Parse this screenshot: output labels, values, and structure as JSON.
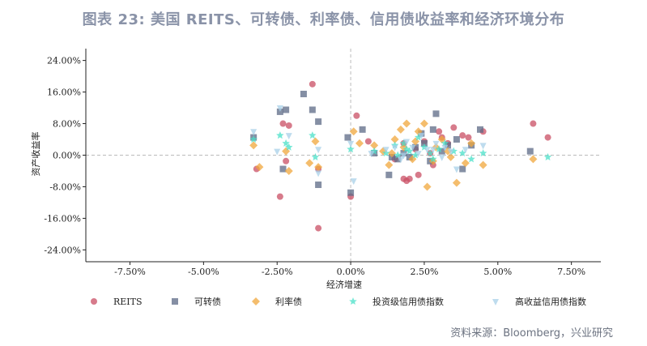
{
  "title": "图表 23: 美国 REITS、可转债、利率债、信用债收益率和经济环境分布",
  "source": "资料来源：Bloomberg，兴业研究",
  "chart_data": {
    "type": "scatter",
    "xlabel": "经济增速",
    "ylabel": "资产收益率",
    "xlim": [
      -0.09,
      0.085
    ],
    "ylim": [
      -0.27,
      0.27
    ],
    "x_ticks": [
      -0.075,
      -0.05,
      -0.025,
      0.0,
      0.025,
      0.05,
      0.075
    ],
    "x_tick_labels": [
      "-7.50%",
      "-5.00%",
      "-2.50%",
      "0.00%",
      "2.50%",
      "5.00%",
      "7.50%"
    ],
    "y_ticks": [
      -0.24,
      -0.16,
      -0.08,
      0.0,
      0.08,
      0.16,
      0.24
    ],
    "y_tick_labels": [
      "-24.00%",
      "-16.00%",
      "-8.00%",
      "0.00%",
      "8.00%",
      "16.00%",
      "24.00%"
    ],
    "reference_lines": {
      "x": 0,
      "y": 0
    },
    "legend_position": "bottom",
    "series": [
      {
        "name": "REITS",
        "marker": "circle",
        "color": "#c94f64",
        "points": [
          [
            -0.032,
            -0.035
          ],
          [
            -0.013,
            0.18
          ],
          [
            -0.021,
            0.075
          ],
          [
            -0.023,
            0.08
          ],
          [
            -0.024,
            -0.105
          ],
          [
            -0.022,
            -0.015
          ],
          [
            -0.011,
            -0.185
          ],
          [
            -0.011,
            -0.035
          ],
          [
            0.0,
            -0.105
          ],
          [
            0.002,
            0.1
          ],
          [
            0.006,
            0.035
          ],
          [
            0.018,
            -0.06
          ],
          [
            0.019,
            -0.065
          ],
          [
            0.02,
            -0.06
          ],
          [
            0.023,
            -0.05
          ],
          [
            0.025,
            0.035
          ],
          [
            0.03,
            0.06
          ],
          [
            0.033,
            0.03
          ],
          [
            0.035,
            0.07
          ],
          [
            0.038,
            0.05
          ],
          [
            0.04,
            0.045
          ],
          [
            0.045,
            0.06
          ],
          [
            0.062,
            0.08
          ],
          [
            0.067,
            0.045
          ],
          [
            0.022,
            0.015
          ],
          [
            0.027,
            0.005
          ],
          [
            0.015,
            -0.01
          ],
          [
            0.028,
            -0.025
          ],
          [
            0.031,
            0.045
          ],
          [
            0.018,
            0.03
          ]
        ]
      },
      {
        "name": "可转债",
        "marker": "square",
        "color": "#5c6a85",
        "points": [
          [
            -0.016,
            0.155
          ],
          [
            -0.022,
            0.115
          ],
          [
            -0.024,
            0.11
          ],
          [
            -0.013,
            0.115
          ],
          [
            -0.011,
            0.085
          ],
          [
            -0.023,
            -0.035
          ],
          [
            -0.033,
            0.045
          ],
          [
            -0.011,
            -0.075
          ],
          [
            0.0,
            -0.095
          ],
          [
            -0.001,
            0.045
          ],
          [
            0.004,
            0.065
          ],
          [
            0.008,
            0.005
          ],
          [
            0.013,
            -0.05
          ],
          [
            0.014,
            -0.005
          ],
          [
            0.018,
            0.005
          ],
          [
            0.022,
            0.02
          ],
          [
            0.024,
            0.055
          ],
          [
            0.028,
            0.065
          ],
          [
            0.029,
            0.105
          ],
          [
            0.033,
            0.025
          ],
          [
            0.036,
            0.04
          ],
          [
            0.038,
            -0.035
          ],
          [
            0.041,
            0.025
          ],
          [
            0.044,
            0.065
          ],
          [
            0.061,
            0.01
          ],
          [
            0.02,
            -0.005
          ],
          [
            0.025,
            0.03
          ],
          [
            0.031,
            0.01
          ],
          [
            0.016,
            -0.01
          ],
          [
            0.027,
            -0.015
          ]
        ]
      },
      {
        "name": "利率债",
        "marker": "diamond",
        "color": "#f0a73c",
        "points": [
          [
            -0.033,
            0.025
          ],
          [
            -0.031,
            -0.03
          ],
          [
            -0.022,
            0.01
          ],
          [
            -0.021,
            -0.04
          ],
          [
            -0.014,
            -0.02
          ],
          [
            -0.012,
            0.035
          ],
          [
            -0.011,
            -0.03
          ],
          [
            0.001,
            0.06
          ],
          [
            0.003,
            0.03
          ],
          [
            0.008,
            0.025
          ],
          [
            0.011,
            0.01
          ],
          [
            0.013,
            -0.025
          ],
          [
            0.015,
            0.04
          ],
          [
            0.017,
            0.065
          ],
          [
            0.019,
            0.08
          ],
          [
            0.021,
            -0.01
          ],
          [
            0.023,
            0.06
          ],
          [
            0.025,
            0.08
          ],
          [
            0.028,
            -0.015
          ],
          [
            0.031,
            0.04
          ],
          [
            0.033,
            0.01
          ],
          [
            0.036,
            -0.07
          ],
          [
            0.039,
            -0.02
          ],
          [
            0.041,
            0.03
          ],
          [
            0.045,
            -0.025
          ],
          [
            0.062,
            -0.01
          ],
          [
            0.026,
            -0.08
          ],
          [
            0.018,
            0.02
          ],
          [
            0.022,
            0.035
          ],
          [
            0.029,
            0.02
          ],
          [
            0.034,
            -0.005
          ],
          [
            0.014,
            0.005
          ]
        ]
      },
      {
        "name": "投资级信用债指数",
        "marker": "star",
        "color": "#48e0c8",
        "points": [
          [
            -0.033,
            0.04
          ],
          [
            -0.024,
            0.05
          ],
          [
            -0.022,
            0.03
          ],
          [
            -0.021,
            0.02
          ],
          [
            -0.013,
            0.05
          ],
          [
            -0.012,
            -0.005
          ],
          [
            0.0,
            0.015
          ],
          [
            0.008,
            0.01
          ],
          [
            0.012,
            0.005
          ],
          [
            0.015,
            0.025
          ],
          [
            0.018,
            0.03
          ],
          [
            0.02,
            0.01
          ],
          [
            0.023,
            0.045
          ],
          [
            0.025,
            0.02
          ],
          [
            0.027,
            0.005
          ],
          [
            0.03,
            0.015
          ],
          [
            0.032,
            0.03
          ],
          [
            0.035,
            0.01
          ],
          [
            0.038,
            0.005
          ],
          [
            0.041,
            -0.01
          ],
          [
            0.045,
            0.005
          ],
          [
            0.067,
            -0.005
          ],
          [
            0.016,
            0.0
          ],
          [
            0.022,
            0.0
          ],
          [
            0.028,
            -0.01
          ],
          [
            0.019,
            0.015
          ]
        ]
      },
      {
        "name": "高收益信用债指数",
        "marker": "triangle-down",
        "color": "#a8d0e8",
        "points": [
          [
            -0.033,
            0.06
          ],
          [
            -0.024,
            0.12
          ],
          [
            -0.021,
            0.05
          ],
          [
            -0.025,
            0.01
          ],
          [
            -0.011,
            0.015
          ],
          [
            -0.011,
            -0.045
          ],
          [
            0.0,
            0.03
          ],
          [
            0.001,
            -0.065
          ],
          [
            0.007,
            0.005
          ],
          [
            0.012,
            0.015
          ],
          [
            0.015,
            0.02
          ],
          [
            0.017,
            -0.01
          ],
          [
            0.019,
            0.035
          ],
          [
            0.021,
            0.02
          ],
          [
            0.024,
            0.05
          ],
          [
            0.026,
            0.015
          ],
          [
            0.029,
            0.03
          ],
          [
            0.031,
            -0.005
          ],
          [
            0.034,
            0.01
          ],
          [
            0.036,
            -0.035
          ],
          [
            0.039,
            0.015
          ],
          [
            0.045,
            0.025
          ],
          [
            0.018,
            0.0
          ],
          [
            0.023,
            0.005
          ],
          [
            0.028,
            0.015
          ],
          [
            0.032,
            0.02
          ]
        ]
      }
    ]
  }
}
